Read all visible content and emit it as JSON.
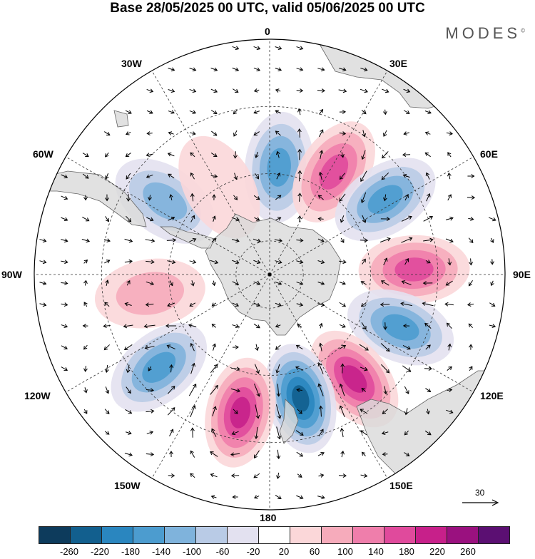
{
  "title": "Base 28/05/2025 00 UTC, valid 05/06/2025 00 UTC",
  "brand": "MODES",
  "brand_mark": "©",
  "longitude_labels": {
    "lon_0": "0",
    "lon_30e": "30E",
    "lon_60e": "60E",
    "lon_90e": "90E",
    "lon_120e": "120E",
    "lon_150e": "150E",
    "lon_180": "180",
    "lon_150w": "150W",
    "lon_120w": "120W",
    "lon_90w": "90W",
    "lon_60w": "60W",
    "lon_30w": "30W"
  },
  "vector_scale": {
    "label": "30",
    "icon": "arrow-right-icon"
  },
  "colorbar": {
    "ticks": [
      "-260",
      "-220",
      "-180",
      "-140",
      "-100",
      "-60",
      "-20",
      "20",
      "60",
      "100",
      "140",
      "180",
      "220",
      "260"
    ],
    "colors": [
      "#0d3b5c",
      "#125f8e",
      "#2a86bf",
      "#4c9ccf",
      "#7fb3dc",
      "#b9cbe6",
      "#e3e1f0",
      "#ffffff",
      "#fbd7d9",
      "#f6abbb",
      "#ef7eab",
      "#e04a9c",
      "#c7208a",
      "#9a117f",
      "#5b0f72"
    ]
  },
  "anomaly_field": {
    "description_units": "geopotential height anomaly",
    "centers": [
      {
        "lon": 5,
        "colat": 32,
        "value": -140
      },
      {
        "lon": 32,
        "colat": 36,
        "value": 170
      },
      {
        "lon": 57,
        "colat": 41,
        "value": -170
      },
      {
        "lon": 88,
        "colat": 43,
        "value": 160
      },
      {
        "lon": 112,
        "colat": 42,
        "value": -160
      },
      {
        "lon": 141,
        "colat": 40,
        "value": 190
      },
      {
        "lon": 166,
        "colat": 38,
        "value": -230
      },
      {
        "lon": 192,
        "colat": 42,
        "value": 210
      },
      {
        "lon": 230,
        "colat": 43,
        "value": -150
      },
      {
        "lon": 261,
        "colat": 36,
        "value": 90
      },
      {
        "lon": 305,
        "colat": 38,
        "value": -120
      },
      {
        "lon": 330,
        "colat": 30,
        "value": 50
      }
    ]
  }
}
